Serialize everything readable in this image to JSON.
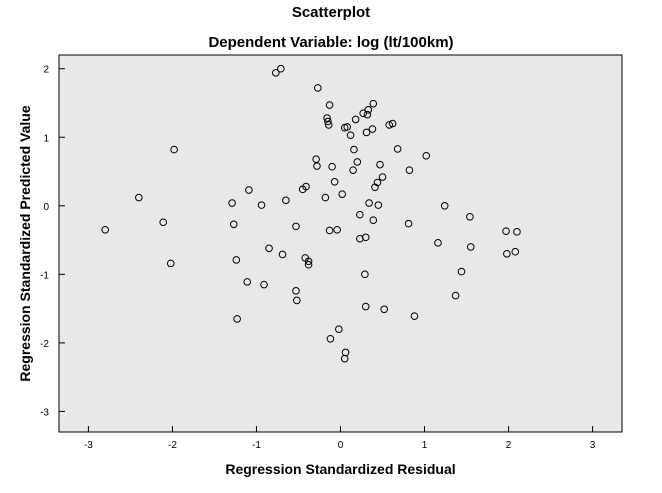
{
  "chart_data": {
    "type": "scatter",
    "title": "Scatterplot",
    "subtitle": "Dependent Variable: log (lt/100km)",
    "xlabel": "Regression Standardized Residual",
    "ylabel": "Regression Standardized Predicted Value",
    "xlim": [
      -3.35,
      3.35
    ],
    "ylim": [
      -3.3,
      2.2
    ],
    "xticks": [
      "-3",
      "-2",
      "-1",
      "0",
      "1",
      "2",
      "3"
    ],
    "yticks": [
      "2",
      "1",
      "0",
      "-1",
      "-2",
      "-3"
    ],
    "grid": false,
    "plot_background": "#e8e8e8",
    "marker_color": "#000000",
    "points": [
      [
        -0.77,
        1.94
      ],
      [
        -0.71,
        2.0
      ],
      [
        -0.27,
        1.72
      ],
      [
        -0.13,
        1.47
      ],
      [
        0.39,
        1.49
      ],
      [
        0.33,
        1.4
      ],
      [
        0.27,
        1.35
      ],
      [
        0.32,
        1.33
      ],
      [
        -0.16,
        1.28
      ],
      [
        -0.15,
        1.23
      ],
      [
        0.18,
        1.26
      ],
      [
        -0.14,
        1.18
      ],
      [
        0.58,
        1.18
      ],
      [
        0.62,
        1.2
      ],
      [
        0.05,
        1.14
      ],
      [
        0.08,
        1.15
      ],
      [
        0.38,
        1.12
      ],
      [
        0.31,
        1.07
      ],
      [
        0.12,
        1.03
      ],
      [
        -1.98,
        0.82
      ],
      [
        0.16,
        0.82
      ],
      [
        0.68,
        0.83
      ],
      [
        1.02,
        0.73
      ],
      [
        -0.29,
        0.68
      ],
      [
        -0.28,
        0.58
      ],
      [
        -0.1,
        0.57
      ],
      [
        0.2,
        0.64
      ],
      [
        0.47,
        0.6
      ],
      [
        0.15,
        0.52
      ],
      [
        0.82,
        0.52
      ],
      [
        0.5,
        0.42
      ],
      [
        0.44,
        0.34
      ],
      [
        -0.07,
        0.35
      ],
      [
        0.41,
        0.27
      ],
      [
        -1.09,
        0.23
      ],
      [
        -0.45,
        0.24
      ],
      [
        -0.41,
        0.28
      ],
      [
        -2.4,
        0.12
      ],
      [
        -0.18,
        0.12
      ],
      [
        0.02,
        0.17
      ],
      [
        -0.65,
        0.08
      ],
      [
        -1.29,
        0.04
      ],
      [
        -0.94,
        0.01
      ],
      [
        0.34,
        0.04
      ],
      [
        0.45,
        0.01
      ],
      [
        1.24,
        0.0
      ],
      [
        0.23,
        -0.13
      ],
      [
        1.54,
        -0.16
      ],
      [
        -2.11,
        -0.24
      ],
      [
        -1.27,
        -0.27
      ],
      [
        -0.53,
        -0.3
      ],
      [
        0.39,
        -0.21
      ],
      [
        0.81,
        -0.26
      ],
      [
        -2.8,
        -0.35
      ],
      [
        -0.13,
        -0.36
      ],
      [
        -0.04,
        -0.35
      ],
      [
        1.97,
        -0.37
      ],
      [
        2.1,
        -0.38
      ],
      [
        0.23,
        -0.48
      ],
      [
        0.3,
        -0.46
      ],
      [
        1.16,
        -0.54
      ],
      [
        1.55,
        -0.6
      ],
      [
        -0.85,
        -0.62
      ],
      [
        -0.69,
        -0.71
      ],
      [
        1.98,
        -0.7
      ],
      [
        2.08,
        -0.67
      ],
      [
        -0.42,
        -0.76
      ],
      [
        -0.38,
        -0.81
      ],
      [
        -0.38,
        -0.86
      ],
      [
        -1.24,
        -0.79
      ],
      [
        -2.02,
        -0.84
      ],
      [
        1.44,
        -0.96
      ],
      [
        0.29,
        -1.0
      ],
      [
        -1.11,
        -1.11
      ],
      [
        -0.91,
        -1.15
      ],
      [
        -0.53,
        -1.24
      ],
      [
        1.37,
        -1.31
      ],
      [
        -0.52,
        -1.38
      ],
      [
        0.3,
        -1.47
      ],
      [
        0.52,
        -1.51
      ],
      [
        0.88,
        -1.61
      ],
      [
        -1.23,
        -1.65
      ],
      [
        -0.02,
        -1.8
      ],
      [
        -0.12,
        -1.94
      ],
      [
        0.06,
        -2.14
      ],
      [
        0.05,
        -2.23
      ]
    ]
  }
}
